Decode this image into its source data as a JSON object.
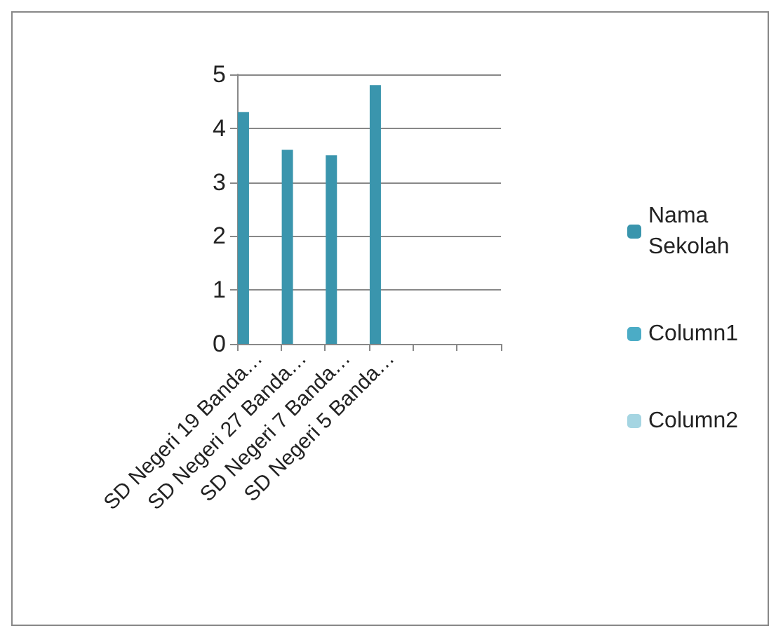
{
  "chart_data": {
    "type": "bar",
    "categories": [
      "SD Negeri 19 Banda…",
      "SD Negeri 27 Banda…",
      "SD Negeri 7 Banda…",
      "SD Negeri 5 Banda…",
      null,
      null
    ],
    "series": [
      {
        "name": "Nama Sekolah",
        "color": "#3a95ad",
        "values": [
          4.3,
          3.6,
          3.5,
          4.8,
          null,
          null
        ]
      },
      {
        "name": "Column1",
        "color": "#4bacc6",
        "values": [
          null,
          null,
          null,
          null,
          null,
          null
        ]
      },
      {
        "name": "Column2",
        "color": "#a5d5e2",
        "values": [
          null,
          null,
          null,
          null,
          null,
          null
        ]
      }
    ],
    "ylim": [
      0,
      5
    ],
    "yticks": [
      0,
      1,
      2,
      3,
      4,
      5
    ],
    "grid": "y",
    "legend": "right"
  }
}
